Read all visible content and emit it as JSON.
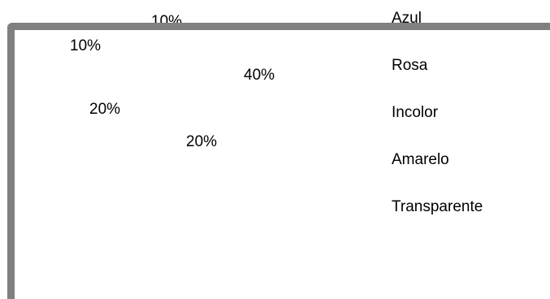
{
  "chart_data": {
    "type": "pie",
    "title": "",
    "categories": [
      "Azul",
      "Rosa",
      "Incolor",
      "Amarelo",
      "Transparente"
    ],
    "values": [
      10,
      40,
      20,
      20,
      10
    ],
    "data_labels": [
      "10%",
      "40%",
      "20%",
      "20%",
      "10%"
    ],
    "legend_position": "right"
  }
}
